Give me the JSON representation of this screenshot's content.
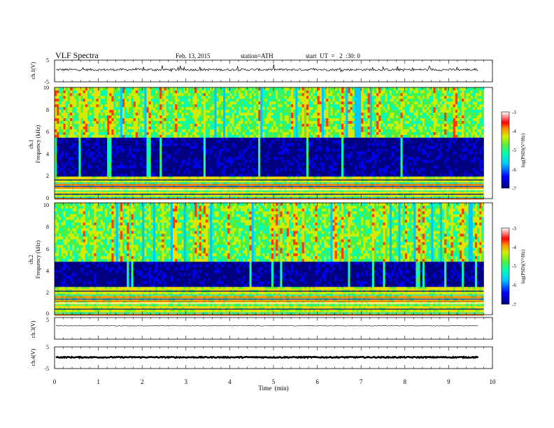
{
  "header": {
    "title": "VLF  Spectra",
    "date": "Feb. 13, 2015",
    "station": "station=ATH",
    "start": "start  UT  =   2  :30: 0"
  },
  "chart_data": [
    {
      "type": "line",
      "panel": "ch1_waveform",
      "ylabel": "ch.1(V)",
      "ylim": [
        -5,
        5
      ],
      "yticks": [
        5,
        -5
      ],
      "xlim": [
        0,
        10
      ],
      "x_end": 9.8,
      "baseline": 0.6,
      "noise_amplitude": 0.5
    },
    {
      "type": "heatmap",
      "panel": "ch1_spectrogram",
      "ylabel": "ch.1",
      "ylabel2": "Frequency  (kHz)",
      "ylim": [
        0,
        10
      ],
      "yticks": [
        0,
        2,
        4,
        6,
        8,
        10
      ],
      "xlim": [
        0,
        10
      ],
      "x_end": 9.8,
      "colorbar": {
        "label": "log(PSD)(V²/Hz)",
        "range": [
          -7,
          -3
        ],
        "ticks": [
          -3,
          -4,
          -5,
          -6,
          -7
        ]
      },
      "bands_kHz": [
        {
          "from": 0,
          "to": 2,
          "level": "horizontal stripes, high"
        },
        {
          "from": 2,
          "to": 5.5,
          "level": "low (-6.5 to -7)"
        },
        {
          "from": 5.5,
          "to": 10,
          "level": "medium (-5 to -4) with bursts"
        }
      ]
    },
    {
      "type": "heatmap",
      "panel": "ch2_spectrogram",
      "ylabel": "ch.2",
      "ylabel2": "Frequency  (kHz)",
      "ylim": [
        0,
        10
      ],
      "yticks": [
        0,
        2,
        4,
        6,
        8,
        10
      ],
      "xlim": [
        0,
        10
      ],
      "x_end": 9.8,
      "colorbar": {
        "label": "log(PSD)(V²/Hz)",
        "range": [
          -7,
          -3
        ],
        "ticks": [
          -3,
          -4,
          -5,
          -6,
          -7
        ]
      },
      "bands_kHz": [
        {
          "from": 0,
          "to": 2.5,
          "level": "horizontal stripes, high"
        },
        {
          "from": 2.5,
          "to": 4.8,
          "level": "low (-6 to -6.5)"
        },
        {
          "from": 4.8,
          "to": 10,
          "level": "medium (-5 to -3.5) with bursts"
        }
      ]
    },
    {
      "type": "line",
      "panel": "ch3_waveform",
      "ylabel": "ch.3(V)",
      "ylim": [
        -5,
        5
      ],
      "yticks": [
        5
      ],
      "xlim": [
        0,
        10
      ],
      "x_end": 9.8,
      "baseline": 1.2,
      "noise_amplitude": 0.15
    },
    {
      "type": "line",
      "panel": "ch4_waveform",
      "ylabel": "ch.4(V)",
      "ylim": [
        -5,
        5
      ],
      "yticks": [
        5,
        -5
      ],
      "xlim": [
        0,
        10
      ],
      "xticks": [
        0,
        1,
        2,
        3,
        4,
        5,
        6,
        7,
        8,
        9,
        10
      ],
      "xlabel": "Time  (min)",
      "x_end": 9.8,
      "baseline": 0.2,
      "noise_amplitude": 0.25
    }
  ],
  "colors": {
    "v7": "#000080",
    "v65": "#0000f0",
    "v6": "#00c8ff",
    "v55": "#00ffb4",
    "v5": "#50f03c",
    "v45": "#c8f000",
    "v4": "#ffd700",
    "v35": "#ff3c00",
    "v3": "#ffffff"
  }
}
